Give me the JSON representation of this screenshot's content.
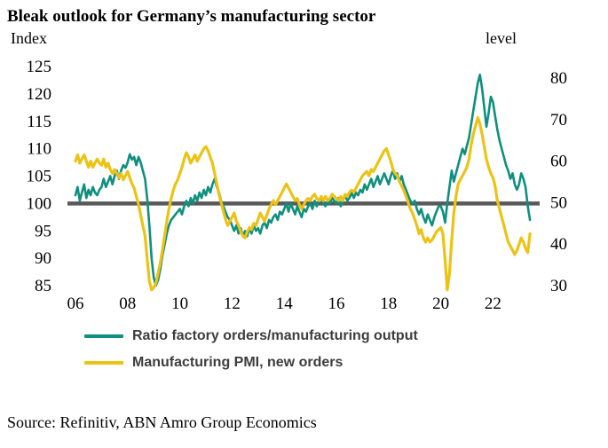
{
  "title": "Bleak outlook for Germany’s manufacturing sector",
  "source": "Source: Refinitiv, ABN Amro Group Economics",
  "colors": {
    "ratio_line": "#0f8f7f",
    "pmi_line": "#ecc315",
    "reference_line": "#595959",
    "legend_text": "#3d3d3d"
  },
  "chart_data": {
    "type": "line",
    "title": "Bleak outlook for Germany’s manufacturing sector",
    "x_monthly_start": "2006-01",
    "points_per_year": 12,
    "x_ticks": [
      {
        "label": "06",
        "year": 2006
      },
      {
        "label": "08",
        "year": 2008
      },
      {
        "label": "10",
        "year": 2010
      },
      {
        "label": "12",
        "year": 2012
      },
      {
        "label": "14",
        "year": 2014
      },
      {
        "label": "16",
        "year": 2016
      },
      {
        "label": "18",
        "year": 2018
      },
      {
        "label": "20",
        "year": 2020
      },
      {
        "label": "22",
        "year": 2022
      }
    ],
    "left_axis": {
      "label": "Index",
      "range": [
        85,
        125
      ],
      "ticks": [
        125,
        120,
        115,
        110,
        105,
        100,
        95,
        90,
        85
      ]
    },
    "right_axis": {
      "label": "level",
      "range": [
        30,
        80
      ],
      "ticks": [
        80,
        70,
        60,
        50,
        40,
        30
      ]
    },
    "reference_line": {
      "left_value": 100,
      "right_value": 50
    },
    "grid": false,
    "legend_position": "bottom",
    "series": [
      {
        "name": "Ratio factory orders/manufacturing output",
        "axis": "left",
        "color": "#0f8f7f",
        "values": [
          101.5,
          103,
          100.5,
          102,
          103.5,
          101,
          102.5,
          101.5,
          103,
          102,
          101.5,
          102.5,
          103,
          104.5,
          103,
          104,
          105,
          103.5,
          105,
          106,
          104.5,
          106,
          107,
          106.5,
          107.5,
          109,
          108,
          108.5,
          107,
          108.5,
          107.5,
          106,
          104.5,
          101,
          96,
          90,
          86.5,
          85,
          86,
          88,
          90.5,
          92.5,
          94.5,
          96,
          97,
          97.5,
          98,
          98.5,
          99,
          98,
          99.5,
          100.5,
          99.5,
          101,
          100,
          101.5,
          100.5,
          102,
          101,
          102.5,
          101.5,
          103,
          102,
          103.5,
          104.5,
          103,
          102,
          100.5,
          99.5,
          98.5,
          97.5,
          97,
          96,
          95,
          96,
          94.5,
          95.5,
          94,
          95,
          94,
          95.5,
          94.5,
          96,
          95,
          95.5,
          94.5,
          96,
          96.5,
          95.5,
          97,
          96.5,
          97.5,
          98,
          97,
          98.5,
          98,
          99,
          100,
          98.5,
          100,
          99,
          98,
          99.5,
          98.5,
          97.5,
          99,
          98.5,
          99.5,
          100,
          99,
          100.5,
          99.5,
          100.5,
          101,
          100,
          99.5,
          100.5,
          100,
          101,
          100.5,
          100,
          101,
          99.5,
          100.5,
          101.5,
          100.5,
          101,
          102,
          101,
          102,
          101.5,
          102.5,
          102,
          103.5,
          102.5,
          103.5,
          104.5,
          103,
          104,
          105,
          103.5,
          104.5,
          105.5,
          104.5,
          103.5,
          105,
          106,
          104.5,
          105.5,
          104,
          105,
          103.5,
          102.5,
          101.5,
          100.5,
          100,
          100.5,
          99,
          98,
          99,
          97.5,
          96.5,
          98,
          97,
          96,
          97.5,
          98.5,
          99.5,
          99.5,
          98.5,
          96.5,
          100,
          103,
          106,
          104,
          105.5,
          107,
          108.5,
          110,
          109,
          110.5,
          112,
          114.5,
          117,
          119.5,
          122,
          123.5,
          121,
          117.5,
          114,
          116.5,
          119.5,
          118.5,
          116,
          113.5,
          111.5,
          110,
          108.5,
          107,
          106,
          104.5,
          105.5,
          103.5,
          102.5,
          103.5,
          105.5,
          104.5,
          103,
          99.5,
          97
        ]
      },
      {
        "name": "Manufacturing PMI, new orders",
        "axis": "right",
        "color": "#ecc315",
        "values": [
          60,
          61.5,
          59.5,
          60.5,
          61.5,
          60,
          58.5,
          60,
          58.5,
          59.5,
          60.5,
          59.5,
          59,
          60.5,
          58.5,
          59.5,
          58,
          57,
          58,
          57,
          56,
          57,
          55.5,
          56.5,
          57.5,
          56,
          54.5,
          53.5,
          51.5,
          49.5,
          47,
          44.5,
          42,
          36.5,
          31,
          29,
          29.5,
          30.5,
          33,
          35.5,
          38.5,
          42,
          45.5,
          48.5,
          51,
          53,
          54.5,
          55.5,
          57,
          58.5,
          60.5,
          62,
          61,
          59.5,
          60.5,
          61.5,
          60,
          61,
          62,
          63,
          63.5,
          62.5,
          61,
          59.5,
          57,
          54.5,
          52,
          50,
          48,
          46,
          44.5,
          45.5,
          46.5,
          47.5,
          45.5,
          44.5,
          43,
          42,
          41.5,
          43,
          44,
          43.5,
          45,
          44.5,
          46,
          47.5,
          46.5,
          45.5,
          47,
          48.5,
          49.5,
          50.5,
          49.5,
          50.5,
          51.5,
          52.5,
          53.5,
          54.5,
          53.5,
          52.5,
          51.5,
          50.5,
          51,
          49.5,
          48.5,
          49.5,
          50.5,
          51,
          50.5,
          51.5,
          52,
          51,
          50.5,
          51.5,
          50.5,
          51.5,
          50.5,
          51,
          52,
          51.5,
          51,
          50.5,
          51.5,
          50.5,
          52,
          51.5,
          52.5,
          53,
          52.5,
          53.5,
          54.5,
          55.5,
          56.5,
          57,
          57.5,
          56.5,
          58,
          57.5,
          58.5,
          59.5,
          60.5,
          61.5,
          62.5,
          63,
          61.5,
          60,
          58,
          57,
          56.5,
          55,
          54,
          53,
          51.5,
          50,
          48.5,
          47.5,
          46,
          44.5,
          42.5,
          43.5,
          41.5,
          40.5,
          41.5,
          40.5,
          41,
          42,
          43,
          43.5,
          44,
          42.5,
          36,
          29,
          33,
          41,
          47.5,
          51.5,
          54.5,
          55.5,
          56.5,
          57.5,
          58.5,
          60.5,
          64,
          66.5,
          68.5,
          70.5,
          69,
          66.5,
          63.5,
          60.5,
          58.5,
          57,
          56,
          54,
          50.5,
          48.5,
          46.5,
          44.5,
          42.5,
          40.5,
          39.5,
          38.5,
          37.5,
          38.5,
          40,
          41.5,
          40.5,
          39,
          38,
          42.5
        ]
      }
    ]
  }
}
